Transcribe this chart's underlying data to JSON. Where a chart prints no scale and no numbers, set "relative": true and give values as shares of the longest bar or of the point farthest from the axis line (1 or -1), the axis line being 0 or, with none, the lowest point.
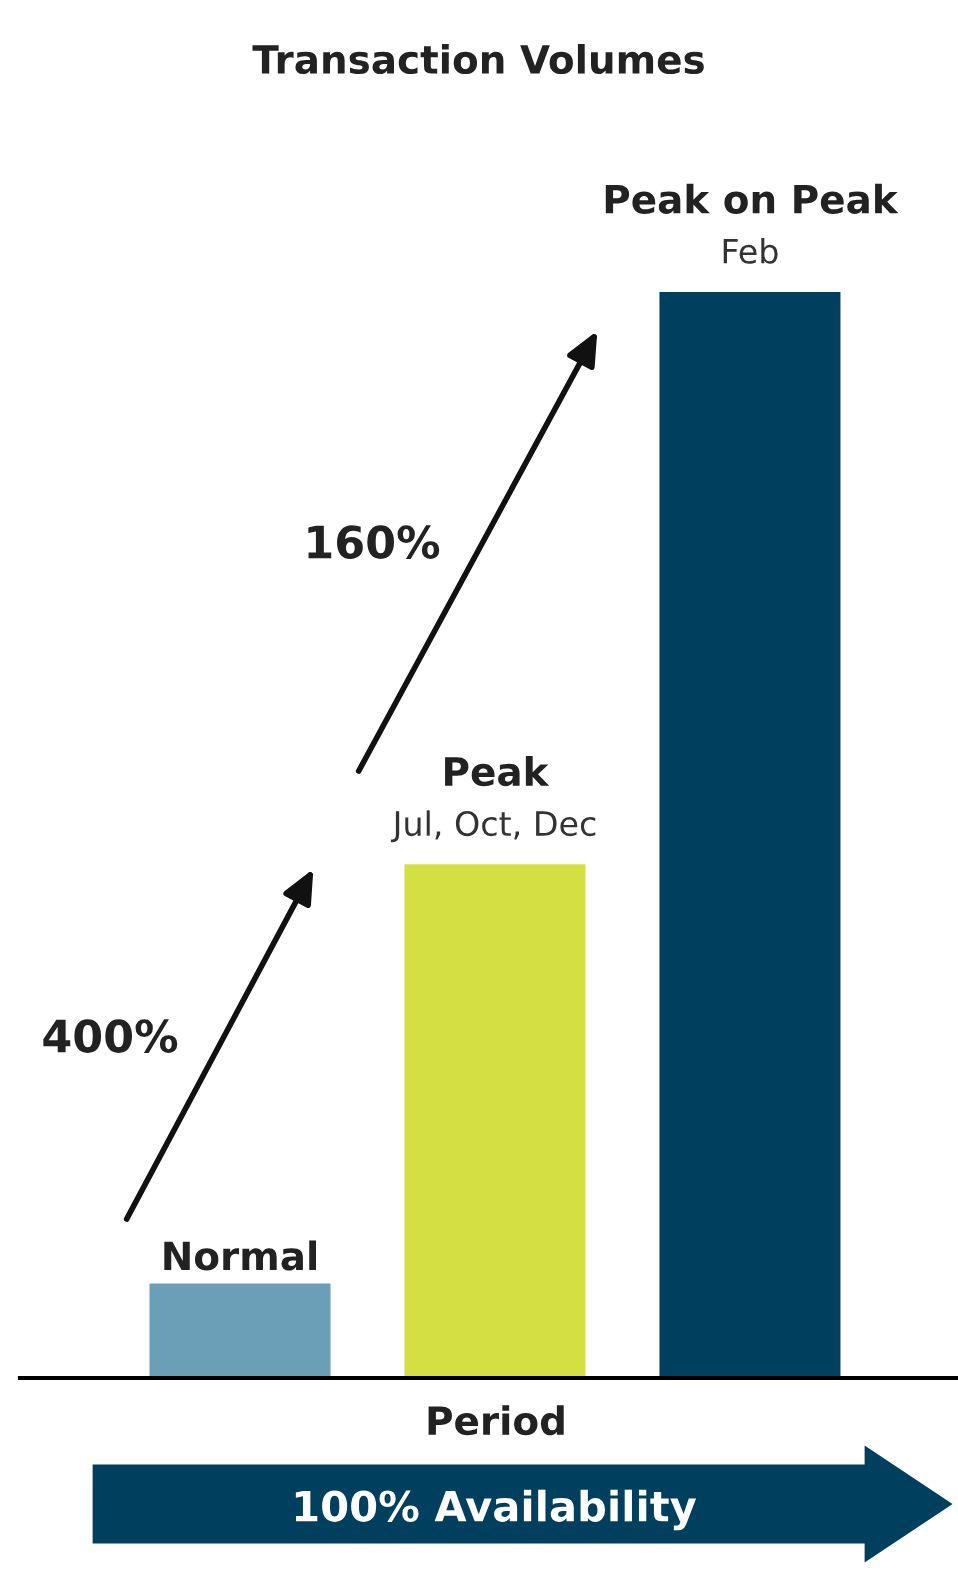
{
  "chart_data": {
    "type": "bar",
    "title": "Transaction Volumes",
    "xlabel": "Period",
    "relative": true,
    "categories": [
      "Normal",
      "Peak",
      "Peak on Peak"
    ],
    "values": [
      0.087,
      0.473,
      1
    ],
    "colors": [
      "#6a9fb7",
      "#d4e041",
      "#00405e"
    ],
    "annotations": [
      {
        "text": "Jul, Oct, Dec",
        "x": "Peak",
        "y": 0.473
      },
      {
        "text": "Feb",
        "x": "Peak on Peak",
        "y": 1
      },
      "400%",
      "160%",
      "100% Availability"
    ],
    "stacked": false
  }
}
